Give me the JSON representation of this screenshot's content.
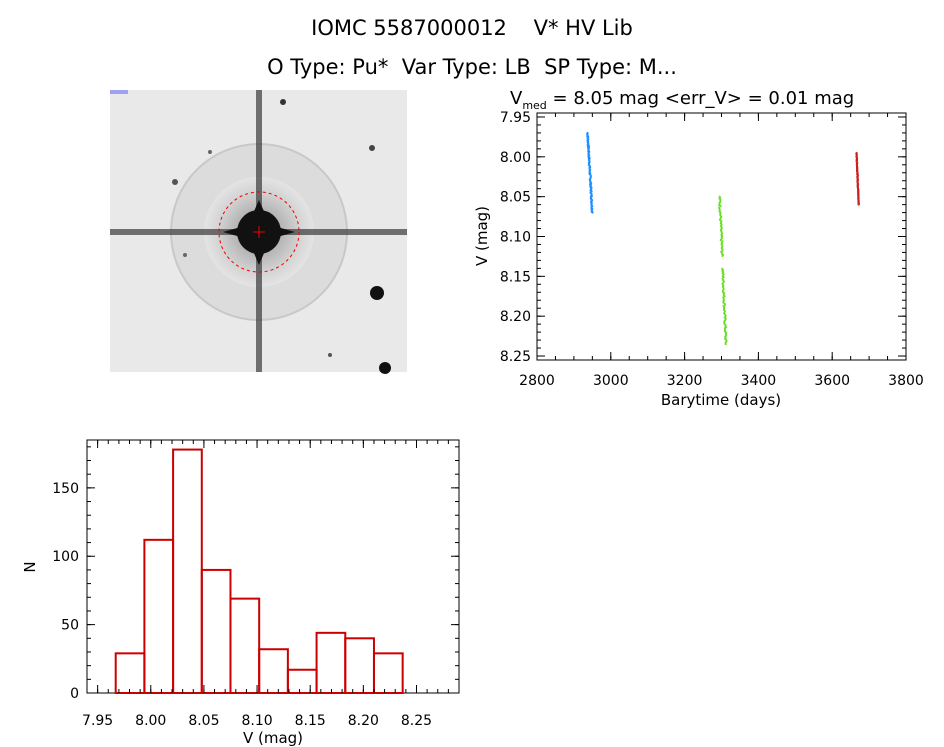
{
  "header": {
    "title_line1": "IOMC 5587000012    V* HV Lib",
    "title_line2": "O Type: Pu*  Var Type: LB  SP Type: M..."
  },
  "image_panel": {
    "description_icon": "star-field-thumbnail"
  },
  "chart_data": [
    {
      "type": "scatter",
      "title_main": "V",
      "title_sub": "med",
      "title_rest": " = 8.05 mag <err_V> = 0.01 mag",
      "xlabel": "Barytime (days)",
      "ylabel": "V (mag)",
      "xlim": [
        2800,
        3800
      ],
      "ylim": [
        8.255,
        7.945
      ],
      "y_inverted": true,
      "xticks": [
        "2800",
        "3000",
        "3200",
        "3400",
        "3600",
        "3800"
      ],
      "yticks": [
        "7.95",
        "8.00",
        "8.05",
        "8.10",
        "8.15",
        "8.20",
        "8.25"
      ],
      "series": [
        {
          "color": "#1e90ff",
          "x_range": [
            2937,
            2950
          ],
          "y_range": [
            7.97,
            8.07
          ]
        },
        {
          "color": "#66dd22",
          "x_range": [
            3295,
            3312
          ],
          "y_range": [
            8.05,
            8.235
          ]
        },
        {
          "color": "#cc2222",
          "x_range": [
            3666,
            3672
          ],
          "y_range": [
            7.995,
            8.06
          ]
        }
      ]
    },
    {
      "type": "bar",
      "xlabel": "V (mag)",
      "ylabel": "N",
      "xlim": [
        7.94,
        8.29
      ],
      "ylim": [
        0,
        185
      ],
      "xticks": [
        "7.95",
        "8.00",
        "8.05",
        "8.10",
        "8.15",
        "8.20",
        "8.25"
      ],
      "yticks": [
        "0",
        "50",
        "100",
        "150"
      ],
      "bin_width": 0.027,
      "bins": [
        {
          "left": 7.967,
          "value": 29
        },
        {
          "left": 7.994,
          "value": 112
        },
        {
          "left": 8.021,
          "value": 178
        },
        {
          "left": 8.048,
          "value": 90
        },
        {
          "left": 8.075,
          "value": 69
        },
        {
          "left": 8.102,
          "value": 32
        },
        {
          "left": 8.129,
          "value": 17
        },
        {
          "left": 8.156,
          "value": 44
        },
        {
          "left": 8.183,
          "value": 40
        },
        {
          "left": 8.21,
          "value": 29
        }
      ],
      "color": "#cc0000"
    }
  ]
}
